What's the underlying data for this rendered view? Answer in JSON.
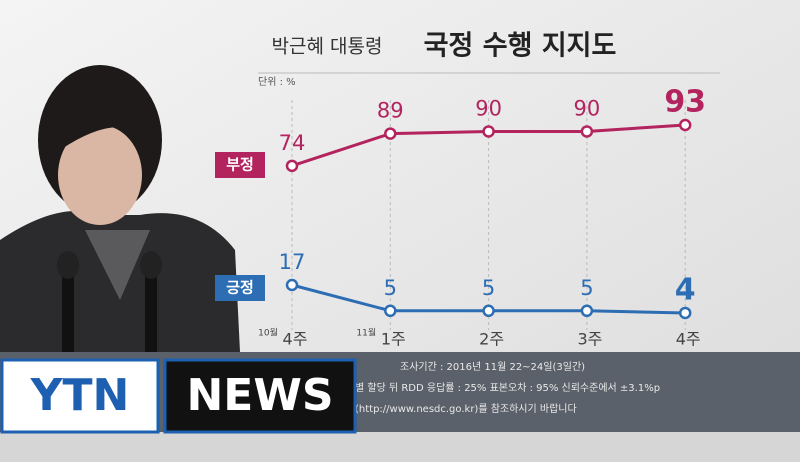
{
  "chart_data": {
    "type": "line",
    "title_prefix": "박근혜 대통령",
    "title": "국정 수행 지지도",
    "unit_label": "단위 : %",
    "categories": [
      "4주",
      "1주",
      "2주",
      "3주",
      "4주"
    ],
    "month_labels": [
      "10월",
      "11월",
      null,
      null,
      null
    ],
    "series": [
      {
        "name": "부정",
        "color": "#b3245f",
        "values": [
          74,
          89,
          90,
          90,
          93
        ]
      },
      {
        "name": "긍정",
        "color": "#2d6db4",
        "values": [
          17,
          5,
          5,
          5,
          4
        ]
      }
    ]
  },
  "footer": {
    "lines": [
      "조사기간 : 2016년 11월 22~24일(3일간)",
      "별 할당 뒤 RDD    응답률 : 25%      표본오차 : 95% 신뢰수준에서 ±3.1%p",
      "(http://www.nesdc.go.kr)를 참조하시기 바랍니다"
    ]
  },
  "logo": {
    "left": "YTN",
    "right": "NEWS"
  }
}
